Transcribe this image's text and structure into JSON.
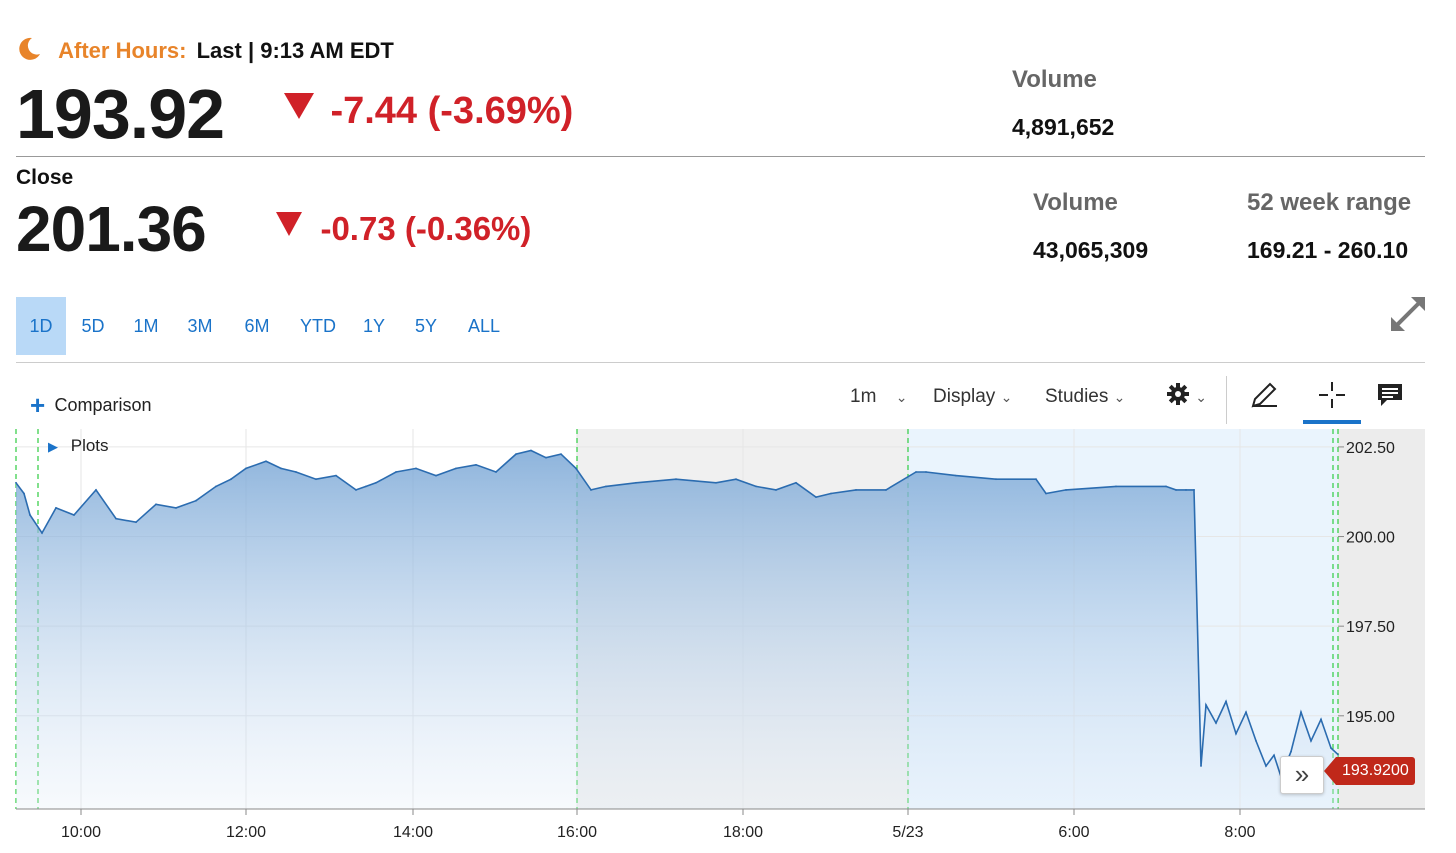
{
  "after_hours": {
    "label": "After Hours:",
    "status": "Last | 9:13 AM EDT",
    "price": "193.92",
    "change": "-7.44 (-3.69%)",
    "volume_label": "Volume",
    "volume": "4,891,652"
  },
  "close": {
    "label": "Close",
    "price": "201.36",
    "change": "-0.73 (-0.36%)",
    "volume_label": "Volume",
    "volume": "43,065,309",
    "range_label": "52 week range",
    "range": "169.21 - 260.10"
  },
  "ranges": [
    "1D",
    "5D",
    "1M",
    "3M",
    "6M",
    "YTD",
    "1Y",
    "5Y",
    "ALL"
  ],
  "active_range": "1D",
  "toolbar": {
    "comparison": "Comparison",
    "interval": "1m",
    "display": "Display",
    "studies": "Studies"
  },
  "plots_label": "Plots",
  "price_tag": "193.9200",
  "colors": {
    "accent": "#1a73c9",
    "down": "#d02128",
    "after_hours": "#e8842a",
    "line": "#2b6cb0"
  },
  "chart_data": {
    "type": "area",
    "x_tick_labels": [
      "10:00",
      "12:00",
      "14:00",
      "16:00",
      "18:00",
      "5/23",
      "6:00",
      "8:00"
    ],
    "y_tick_labels": [
      "202.50",
      "200.00",
      "197.50",
      "195.00"
    ],
    "ylim": [
      192.4,
      203.0
    ],
    "grid": true,
    "series": [
      {
        "x": [
          0,
          8,
          14,
          26,
          40,
          58,
          80,
          100,
          120,
          140,
          160,
          180,
          200,
          215,
          230,
          250,
          265,
          280,
          300,
          320,
          340,
          350,
          360,
          380,
          400,
          420,
          440,
          460,
          480,
          500,
          515,
          530,
          545,
          560,
          575,
          590,
          620,
          660,
          700,
          720,
          740,
          760,
          780,
          800,
          815,
          840,
          870,
          900,
          910,
          940,
          980,
          1020,
          1030,
          1050,
          1100,
          1150,
          1160,
          1170,
          1178,
          1185,
          1190,
          1200,
          1210,
          1220,
          1230,
          1240,
          1250,
          1258,
          1265,
          1275,
          1285,
          1295,
          1305,
          1315,
          1322
        ],
        "values": [
          201.5,
          201.2,
          200.6,
          200.1,
          200.8,
          200.6,
          201.3,
          200.5,
          200.4,
          200.9,
          200.8,
          201.0,
          201.4,
          201.6,
          201.9,
          202.1,
          201.9,
          201.8,
          201.6,
          201.7,
          201.3,
          201.4,
          201.5,
          201.8,
          201.9,
          201.7,
          201.9,
          202.0,
          201.8,
          202.3,
          202.4,
          202.2,
          202.3,
          201.9,
          201.3,
          201.4,
          201.5,
          201.6,
          201.5,
          201.6,
          201.4,
          201.3,
          201.5,
          201.1,
          201.2,
          201.3,
          201.3,
          201.8,
          201.8,
          201.7,
          201.6,
          201.6,
          201.2,
          201.3,
          201.4,
          201.4,
          201.3,
          201.3,
          201.3,
          193.6,
          195.3,
          194.8,
          195.4,
          194.5,
          195.1,
          194.3,
          193.6,
          193.9,
          193.3,
          194.0,
          195.1,
          194.3,
          194.9,
          194.1,
          193.92
        ]
      }
    ]
  }
}
